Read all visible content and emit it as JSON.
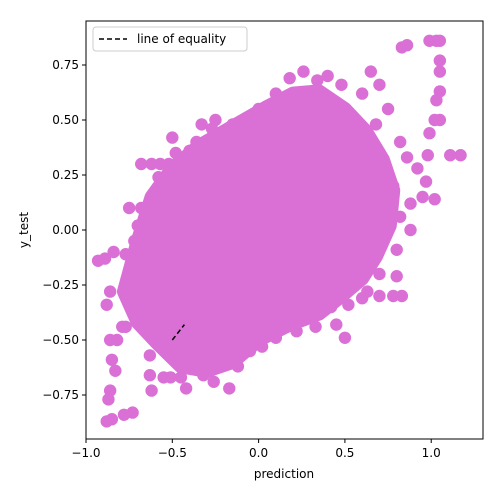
{
  "chart_data": {
    "type": "scatter",
    "xlabel": "prediction",
    "ylabel": "y_test",
    "xlim": [
      -1.0,
      1.3
    ],
    "ylim": [
      -0.95,
      0.95
    ],
    "xticks": [
      -1.0,
      -0.5,
      0.0,
      0.5,
      1.0
    ],
    "xtick_labels": [
      "−1.0",
      "−0.5",
      "0.0",
      "0.5",
      "1.0"
    ],
    "yticks": [
      -0.75,
      -0.5,
      -0.25,
      0.0,
      0.25,
      0.5,
      0.75
    ],
    "ytick_labels": [
      "−0.75",
      "−0.50",
      "−0.25",
      "0.00",
      "0.25",
      "0.50",
      "0.75"
    ],
    "grid": false,
    "legend_position": "upper-left",
    "series": [
      {
        "name": "",
        "kind": "scatter",
        "color": "#da70d6",
        "points": [
          [
            -0.88,
            -0.87
          ],
          [
            -0.85,
            -0.86
          ],
          [
            -0.87,
            -0.77
          ],
          [
            -0.86,
            -0.73
          ],
          [
            -0.78,
            -0.84
          ],
          [
            -0.73,
            -0.83
          ],
          [
            -0.83,
            -0.64
          ],
          [
            -0.85,
            -0.59
          ],
          [
            -0.86,
            -0.5
          ],
          [
            -0.82,
            -0.5
          ],
          [
            -0.79,
            -0.44
          ],
          [
            -0.77,
            -0.44
          ],
          [
            -0.88,
            -0.34
          ],
          [
            -0.86,
            -0.28
          ],
          [
            -0.93,
            -0.14
          ],
          [
            -0.89,
            -0.13
          ],
          [
            -0.84,
            -0.1
          ],
          [
            -0.77,
            -0.11
          ],
          [
            -0.76,
            -0.25
          ],
          [
            -0.72,
            -0.3
          ],
          [
            -0.7,
            -0.42
          ],
          [
            -0.65,
            -0.43
          ],
          [
            -0.63,
            -0.66
          ],
          [
            -0.62,
            -0.73
          ],
          [
            -0.63,
            -0.57
          ],
          [
            -0.55,
            -0.67
          ],
          [
            -0.51,
            -0.67
          ],
          [
            -0.45,
            -0.67
          ],
          [
            -0.42,
            -0.72
          ],
          [
            -0.32,
            -0.66
          ],
          [
            -0.26,
            -0.69
          ],
          [
            -0.17,
            -0.72
          ],
          [
            -0.05,
            -0.55
          ],
          [
            0.02,
            -0.53
          ],
          [
            0.1,
            -0.49
          ],
          [
            0.22,
            -0.46
          ],
          [
            0.33,
            -0.44
          ],
          [
            0.42,
            -0.35
          ],
          [
            0.45,
            -0.43
          ],
          [
            0.5,
            -0.49
          ],
          [
            0.52,
            -0.34
          ],
          [
            0.6,
            -0.31
          ],
          [
            0.63,
            -0.28
          ],
          [
            0.7,
            -0.3
          ],
          [
            0.78,
            -0.3
          ],
          [
            0.83,
            -0.3
          ],
          [
            0.8,
            -0.21
          ],
          [
            0.7,
            -0.2
          ],
          [
            0.62,
            -0.18
          ],
          [
            0.55,
            -0.1
          ],
          [
            0.65,
            -0.05
          ],
          [
            0.8,
            -0.09
          ],
          [
            0.88,
            0.0
          ],
          [
            0.82,
            0.06
          ],
          [
            0.88,
            0.12
          ],
          [
            0.95,
            0.15
          ],
          [
            1.02,
            0.14
          ],
          [
            0.97,
            0.22
          ],
          [
            0.92,
            0.28
          ],
          [
            0.86,
            0.33
          ],
          [
            0.82,
            0.4
          ],
          [
            0.98,
            0.34
          ],
          [
            0.99,
            0.44
          ],
          [
            1.02,
            0.5
          ],
          [
            1.05,
            0.5
          ],
          [
            1.03,
            0.59
          ],
          [
            1.05,
            0.63
          ],
          [
            1.05,
            0.72
          ],
          [
            1.05,
            0.77
          ],
          [
            0.99,
            0.86
          ],
          [
            1.03,
            0.86
          ],
          [
            1.05,
            0.86
          ],
          [
            0.86,
            0.84
          ],
          [
            0.83,
            0.83
          ],
          [
            1.11,
            0.34
          ],
          [
            1.17,
            0.34
          ],
          [
            0.75,
            0.55
          ],
          [
            0.7,
            0.66
          ],
          [
            0.65,
            0.72
          ],
          [
            0.68,
            0.48
          ],
          [
            0.6,
            0.62
          ],
          [
            0.48,
            0.66
          ],
          [
            0.4,
            0.7
          ],
          [
            0.34,
            0.68
          ],
          [
            0.26,
            0.72
          ],
          [
            0.18,
            0.69
          ],
          [
            0.1,
            0.62
          ],
          [
            0.0,
            0.55
          ],
          [
            -0.08,
            0.5
          ],
          [
            -0.15,
            0.48
          ],
          [
            -0.22,
            0.44
          ],
          [
            -0.27,
            0.46
          ],
          [
            -0.36,
            0.4
          ],
          [
            -0.4,
            0.36
          ],
          [
            -0.33,
            0.48
          ],
          [
            -0.25,
            0.5
          ],
          [
            -0.48,
            0.35
          ],
          [
            -0.52,
            0.3
          ],
          [
            -0.57,
            0.3
          ],
          [
            -0.62,
            0.3
          ],
          [
            -0.68,
            0.3
          ],
          [
            -0.55,
            0.22
          ],
          [
            -0.58,
            0.24
          ],
          [
            -0.5,
            0.42
          ],
          [
            -0.75,
            0.1
          ],
          [
            -0.68,
            0.1
          ],
          [
            -0.7,
            0.02
          ],
          [
            -0.72,
            -0.05
          ],
          [
            -0.65,
            -0.15
          ],
          [
            -0.6,
            -0.2
          ],
          [
            -0.58,
            -0.33
          ],
          [
            -0.52,
            -0.38
          ],
          [
            -0.48,
            -0.5
          ],
          [
            -0.5,
            -0.55
          ],
          [
            -0.42,
            -0.6
          ],
          [
            -0.35,
            -0.55
          ],
          [
            -0.28,
            -0.6
          ],
          [
            -0.2,
            -0.58
          ],
          [
            -0.12,
            -0.62
          ],
          [
            0.05,
            -0.42
          ],
          [
            0.15,
            -0.38
          ],
          [
            0.25,
            -0.4
          ],
          [
            0.35,
            -0.3
          ],
          [
            0.45,
            -0.25
          ],
          [
            0.55,
            -0.22
          ],
          [
            0.6,
            -0.12
          ],
          [
            0.7,
            0.0
          ],
          [
            0.74,
            0.1
          ],
          [
            0.78,
            0.2
          ],
          [
            0.72,
            0.3
          ],
          [
            0.65,
            0.35
          ],
          [
            0.6,
            0.45
          ],
          [
            0.55,
            0.5
          ],
          [
            0.45,
            0.55
          ],
          [
            0.38,
            0.6
          ],
          [
            0.3,
            0.58
          ],
          [
            0.2,
            0.56
          ],
          [
            0.1,
            0.52
          ],
          [
            -0.45,
            -0.28
          ],
          [
            -0.4,
            -0.38
          ],
          [
            -0.35,
            -0.42
          ],
          [
            -0.3,
            -0.45
          ],
          [
            -0.2,
            -0.48
          ],
          [
            -0.1,
            -0.45
          ]
        ]
      },
      {
        "name": "line of equality",
        "kind": "line",
        "color": "#000000",
        "dash": "dashed",
        "x": [
          -0.5,
          -0.43
        ],
        "y": [
          -0.5,
          -0.43
        ]
      }
    ]
  }
}
